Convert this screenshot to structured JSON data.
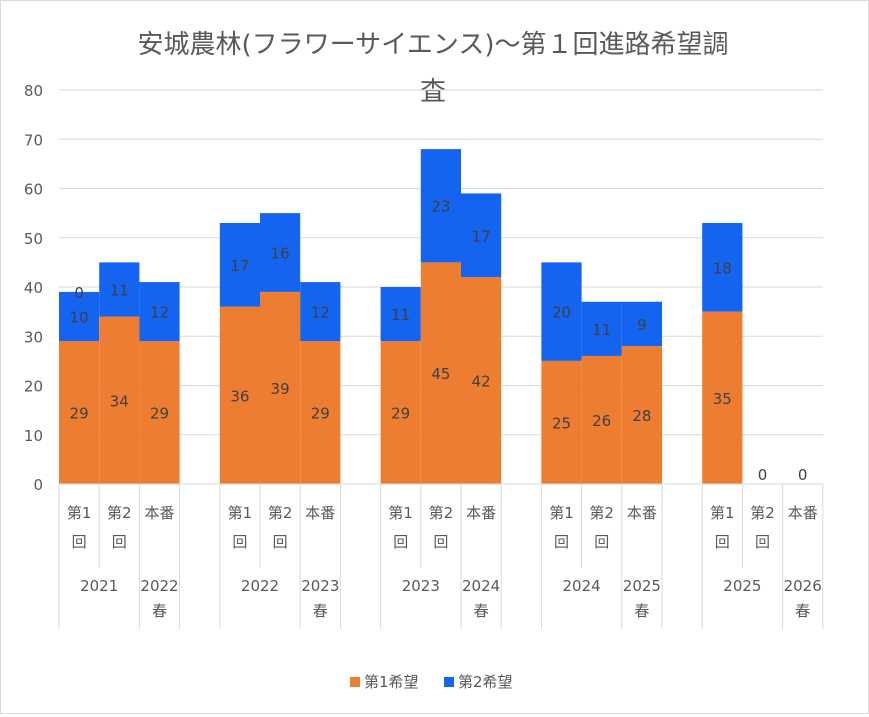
{
  "chart_data": {
    "type": "bar",
    "stacked": true,
    "title_line1": "安城農林(フラワーサイエンス)～第１回進路希望調",
    "title_line2": "査",
    "ylim": [
      0,
      80
    ],
    "yticks": [
      "0",
      "10",
      "20",
      "30",
      "40",
      "50",
      "60",
      "70",
      "80"
    ],
    "grid": true,
    "legend_position": "bottom",
    "colors": {
      "first": "#ED7D31",
      "second": "#1464F0"
    },
    "series": [
      {
        "name": "第1希望",
        "values": [
          29,
          34,
          29,
          36,
          39,
          29,
          29,
          45,
          42,
          25,
          26,
          28,
          35,
          0,
          0
        ]
      },
      {
        "name": "第2希望",
        "values": [
          10,
          11,
          12,
          17,
          16,
          12,
          11,
          23,
          17,
          20,
          11,
          9,
          18,
          0,
          0
        ]
      }
    ],
    "first_value_labels": [
      "29",
      "34",
      "29",
      "36",
      "39",
      "29",
      "29",
      "45",
      "42",
      "25",
      "26",
      "28",
      "35",
      "",
      ""
    ],
    "second_value_labels": [
      "10",
      "11",
      "12",
      "17",
      "16",
      "12",
      "11",
      "23",
      "17",
      "20",
      "11",
      "9",
      "18",
      "0",
      "0"
    ],
    "extra_labels": [
      "0"
    ],
    "categories": [
      [
        "第1",
        "回"
      ],
      [
        "第2",
        "回"
      ],
      [
        "本番"
      ],
      [
        "第1",
        "回"
      ],
      [
        "第2",
        "回"
      ],
      [
        "本番"
      ],
      [
        "第1",
        "回"
      ],
      [
        "第2",
        "回"
      ],
      [
        "本番"
      ],
      [
        "第1",
        "回"
      ],
      [
        "第2",
        "回"
      ],
      [
        "本番"
      ],
      [
        "第1",
        "回"
      ],
      [
        "第2",
        "回"
      ],
      [
        "本番"
      ]
    ],
    "group_labels": [
      [
        "2021"
      ],
      [
        "2022",
        "春"
      ],
      [
        "2022"
      ],
      [
        "2023",
        "春"
      ],
      [
        "2023"
      ],
      [
        "2024",
        "春"
      ],
      [
        "2024"
      ],
      [
        "2025",
        "春"
      ],
      [
        "2025"
      ],
      [
        "2026",
        "春"
      ]
    ]
  }
}
